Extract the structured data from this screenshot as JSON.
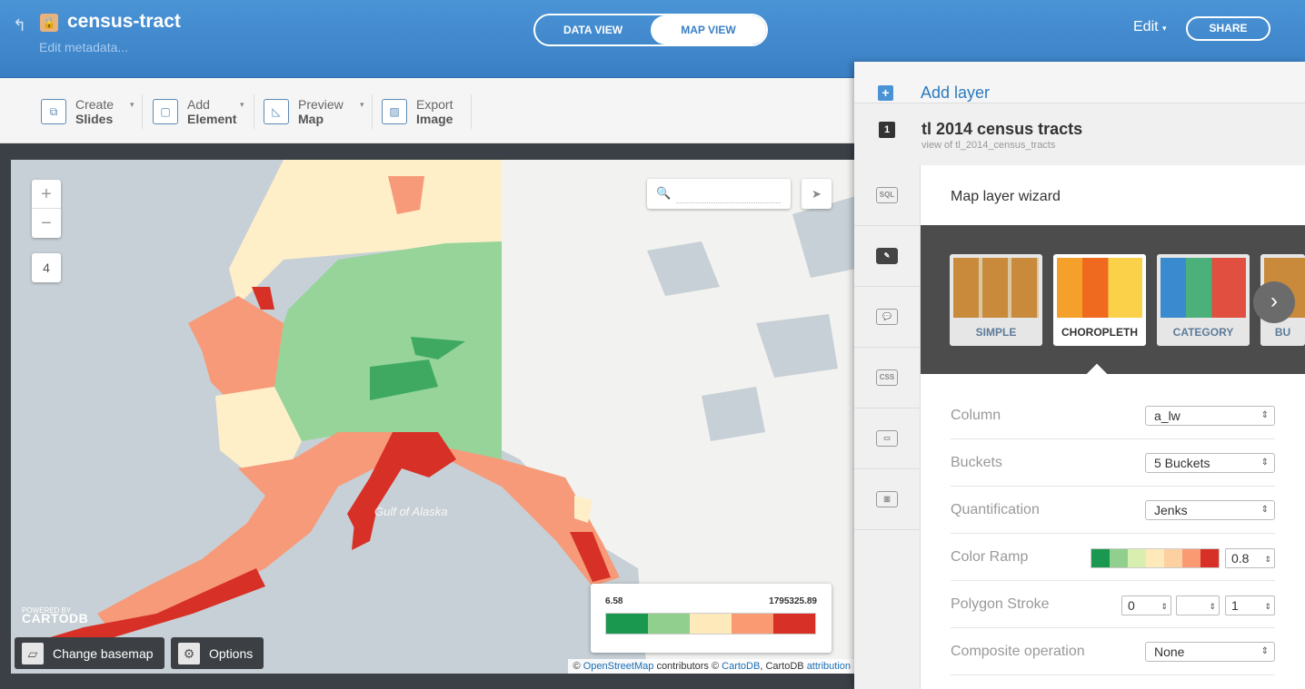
{
  "header": {
    "title": "census-tract",
    "subtitle": "Edit metadata...",
    "data_view": "DATA VIEW",
    "map_view": "MAP VIEW",
    "edit": "Edit",
    "share": "SHARE"
  },
  "toolbar": {
    "create": {
      "top": "Create",
      "bottom": "Slides"
    },
    "add": {
      "top": "Add",
      "bottom": "Element"
    },
    "preview": {
      "top": "Preview",
      "bottom": "Map"
    },
    "export": {
      "top": "Export",
      "bottom": "Image"
    }
  },
  "map": {
    "zoom_in": "+",
    "zoom_out": "−",
    "zoom_level": "4",
    "sea_label": "Gulf of Alaska",
    "powered_by": "POWERED BY",
    "powered_brand": "CARTODB",
    "change_basemap": "Change basemap",
    "options": "Options",
    "legend": {
      "min": "6.58",
      "max": "1795325.89",
      "colors": [
        "#1a9850",
        "#91cf8f",
        "#fee9bb",
        "#f99a72",
        "#d73027"
      ]
    },
    "attribution": {
      "prefix": "©",
      "osm": "OpenStreetMap",
      "contributors": "contributors ©",
      "cartodb": "CartoDB",
      "mid": ", CartoDB",
      "attribution": "attribution"
    }
  },
  "panel": {
    "add_layer": "Add layer",
    "layer_number": "1",
    "layer_name": "tl 2014 census tracts",
    "layer_sub": "view of tl_2014_census_tracts",
    "tabs": [
      "SQL",
      "wizard",
      "infowindow",
      "CSS",
      "legend",
      "filters",
      "more"
    ],
    "wizard_title": "Map layer wizard",
    "types": [
      "SIMPLE",
      "CHOROPLETH",
      "CATEGORY",
      "BU"
    ],
    "rows": {
      "column": {
        "label": "Column",
        "value": "a_lw"
      },
      "buckets": {
        "label": "Buckets",
        "value": "5 Buckets"
      },
      "quantification": {
        "label": "Quantification",
        "value": "Jenks"
      },
      "color_ramp": {
        "label": "Color Ramp",
        "opacity": "0.8",
        "colors": [
          "#1a9850",
          "#91cf8f",
          "#d9efb0",
          "#fee9bb",
          "#fdd0a2",
          "#f99a72",
          "#d73027"
        ]
      },
      "polygon_stroke": {
        "label": "Polygon Stroke",
        "width": "0",
        "opacity": "1"
      },
      "composite": {
        "label": "Composite operation",
        "value": "None"
      }
    }
  }
}
